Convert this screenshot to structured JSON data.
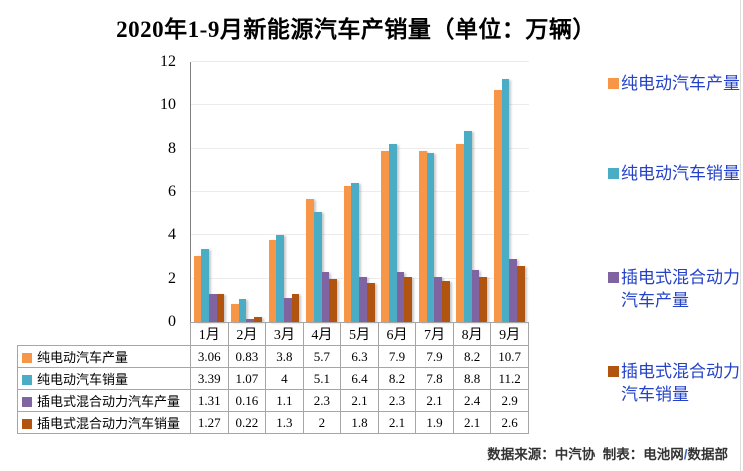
{
  "title": "2020年1-9月新能源汽车产销量（单位：万辆）",
  "source_note": {
    "prefix": "数据来源：中汽协  制表：电池网",
    "slash": "/",
    "suffix": "数据部"
  },
  "legend": {
    "text_color": "#2442C8",
    "position": "right"
  },
  "chart_data": {
    "type": "bar",
    "title": "2020年1-9月新能源汽车产销量（单位：万辆）",
    "categories": [
      "1月",
      "2月",
      "3月",
      "4月",
      "5月",
      "6月",
      "7月",
      "8月",
      "9月"
    ],
    "series": [
      {
        "name": "纯电动汽车产量",
        "color": "#F79646",
        "values": [
          3.06,
          0.83,
          3.8,
          5.7,
          6.3,
          7.9,
          7.9,
          8.2,
          10.7
        ]
      },
      {
        "name": "纯电动汽车销量",
        "color": "#4BACC6",
        "values": [
          3.39,
          1.07,
          4,
          5.1,
          6.4,
          8.2,
          7.8,
          8.8,
          11.2
        ]
      },
      {
        "name": "插电式混合动力汽车产量",
        "color": "#8064A2",
        "values": [
          1.31,
          0.16,
          1.1,
          2.3,
          2.1,
          2.3,
          2.1,
          2.4,
          2.9
        ]
      },
      {
        "name": "插电式混合动力汽车销量",
        "color": "#B0540F",
        "values": [
          1.27,
          0.22,
          1.3,
          2,
          1.8,
          2.1,
          1.9,
          2.1,
          2.6
        ]
      }
    ],
    "xlabel": "",
    "ylabel": "",
    "ylim": [
      0,
      12
    ],
    "ytick_step": 2,
    "grid": true,
    "legend_position": "right",
    "axis_color": "#7f7f7f",
    "gridline_color": "#ececec"
  }
}
